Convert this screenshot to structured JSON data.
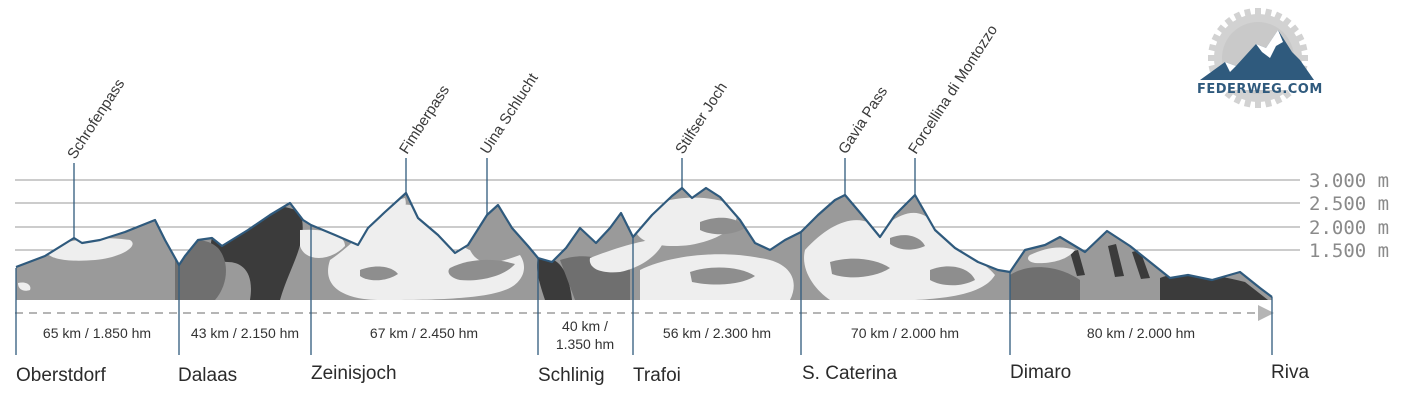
{
  "altitude_levels": [
    {
      "label": "3.000 m"
    },
    {
      "label": "2.500 m"
    },
    {
      "label": "2.000 m"
    },
    {
      "label": "1.500 m"
    }
  ],
  "passes": [
    {
      "name": "Schrofenpass"
    },
    {
      "name": "Fimberpass"
    },
    {
      "name": "Uina Schlucht"
    },
    {
      "name": "Stilfser Joch"
    },
    {
      "name": "Gavia Pass"
    },
    {
      "name": "Forcellina di Montozzo"
    }
  ],
  "towns": [
    {
      "name": "Oberstdorf"
    },
    {
      "name": "Dalaas"
    },
    {
      "name": "Zeinisjoch"
    },
    {
      "name": "Schlinig"
    },
    {
      "name": "Trafoi"
    },
    {
      "name": "S. Caterina"
    },
    {
      "name": "Dimaro"
    },
    {
      "name": "Riva"
    }
  ],
  "segments": [
    {
      "line1": "65 km / 1.850 hm",
      "line2": ""
    },
    {
      "line1": "43 km / 2.150 hm",
      "line2": ""
    },
    {
      "line1": "67 km / 2.450 hm",
      "line2": ""
    },
    {
      "line1": "40 km /",
      "line2": "1.350 hm"
    },
    {
      "line1": "56 km / 2.300 hm",
      "line2": ""
    },
    {
      "line1": "70 km / 2.000 hm",
      "line2": ""
    },
    {
      "line1": "80 km / 2.000 hm",
      "line2": ""
    }
  ],
  "logo": {
    "text": "FEDERWEG.COM"
  },
  "colors": {
    "ridge": "#2f5a7d",
    "rock_dark": "#3b3b3b",
    "rock_mid": "#7b7b7b",
    "rock_light": "#a7a7a7",
    "snow": "#eeeeee",
    "grid": "#9a9a9a",
    "arrow": "#b5b5b5"
  }
}
